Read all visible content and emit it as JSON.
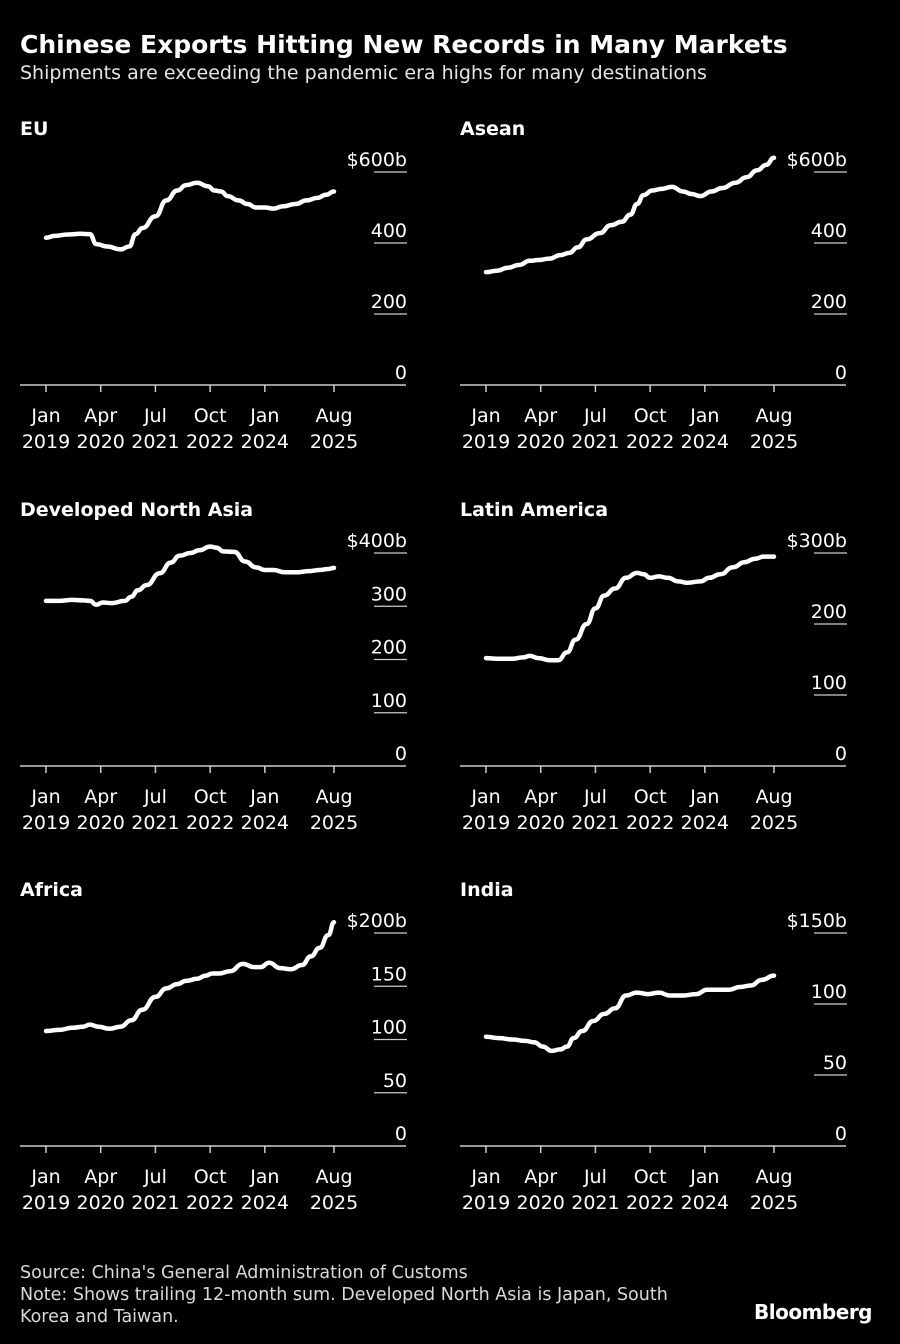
{
  "header": {
    "title": "Chinese Exports Hitting New Records in Many Markets",
    "subtitle": "Shipments are exceeding the pandemic era highs for many destinations"
  },
  "footer": {
    "source": "Source: China's General Administration of Customs",
    "note_line1": "Note: Shows trailing 12-month sum. Developed North Asia is Japan, South",
    "note_line2": "Korea and Taiwan.",
    "brand": "Bloomberg"
  },
  "colors": {
    "background": "#000000",
    "line": "#ffffff",
    "axis": "#cccccc"
  },
  "x_tick_labels": [
    {
      "month": "Jan",
      "year": "2019",
      "t": 2019.0
    },
    {
      "month": "Apr",
      "year": "2020",
      "t": 2020.25
    },
    {
      "month": "Jul",
      "year": "2021",
      "t": 2021.5
    },
    {
      "month": "Oct",
      "year": "2022",
      "t": 2022.75
    },
    {
      "month": "Jan",
      "year": "2024",
      "t": 2024.0
    },
    {
      "month": "Aug",
      "year": "2025",
      "t": 2025.58
    }
  ],
  "chart_data": [
    {
      "type": "line",
      "title": "EU",
      "xlabel": "",
      "ylabel": "",
      "ylim": [
        0,
        600
      ],
      "yticks": [
        0,
        200,
        400,
        600
      ],
      "ytick_labels": [
        "0",
        "200",
        "400",
        "$600b"
      ],
      "xlim": [
        2019.0,
        2025.58
      ],
      "grid": false,
      "legend": "none",
      "series": [
        {
          "x": [
            2019.0,
            2019.2,
            2019.5,
            2019.8,
            2020.0,
            2020.15,
            2020.4,
            2020.7,
            2020.9,
            2021.05,
            2021.2,
            2021.5,
            2021.75,
            2022.0,
            2022.2,
            2022.45,
            2022.7,
            2022.85,
            2023.0,
            2023.15,
            2023.4,
            2023.6,
            2023.8,
            2024.0,
            2024.2,
            2024.4,
            2024.7,
            2024.95,
            2025.2,
            2025.4,
            2025.58
          ],
          "y": [
            415,
            420,
            424,
            426,
            425,
            397,
            390,
            382,
            390,
            425,
            442,
            475,
            520,
            548,
            563,
            570,
            560,
            548,
            545,
            532,
            520,
            510,
            500,
            500,
            497,
            503,
            510,
            520,
            527,
            536,
            545
          ]
        }
      ]
    },
    {
      "type": "line",
      "title": "Asean",
      "xlabel": "",
      "ylabel": "",
      "ylim": [
        0,
        600
      ],
      "yticks": [
        0,
        200,
        400,
        600
      ],
      "ytick_labels": [
        "0",
        "200",
        "400",
        "$600b"
      ],
      "xlim": [
        2019.0,
        2025.58
      ],
      "grid": false,
      "legend": "none",
      "series": [
        {
          "x": [
            2019.0,
            2019.25,
            2019.5,
            2019.75,
            2020.0,
            2020.2,
            2020.45,
            2020.7,
            2020.9,
            2021.1,
            2021.3,
            2021.6,
            2021.85,
            2022.1,
            2022.3,
            2022.45,
            2022.6,
            2022.8,
            2023.0,
            2023.25,
            2023.5,
            2023.7,
            2023.9,
            2024.15,
            2024.4,
            2024.7,
            2024.95,
            2025.2,
            2025.4,
            2025.58
          ],
          "y": [
            318,
            322,
            330,
            338,
            350,
            352,
            356,
            366,
            372,
            388,
            410,
            428,
            450,
            460,
            480,
            510,
            535,
            548,
            552,
            558,
            545,
            538,
            532,
            545,
            555,
            570,
            585,
            605,
            620,
            640
          ]
        }
      ]
    },
    {
      "type": "line",
      "title": "Developed North Asia",
      "xlabel": "",
      "ylabel": "",
      "ylim": [
        0,
        400
      ],
      "yticks": [
        0,
        100,
        200,
        300,
        400
      ],
      "ytick_labels": [
        "0",
        "100",
        "200",
        "300",
        "$400b"
      ],
      "xlim": [
        2019.0,
        2025.58
      ],
      "grid": false,
      "legend": "none",
      "series": [
        {
          "x": [
            2019.0,
            2019.3,
            2019.6,
            2019.85,
            2020.0,
            2020.15,
            2020.3,
            2020.5,
            2020.8,
            2020.95,
            2021.1,
            2021.3,
            2021.6,
            2021.85,
            2022.05,
            2022.3,
            2022.5,
            2022.75,
            2022.9,
            2023.05,
            2023.3,
            2023.55,
            2023.8,
            2024.0,
            2024.2,
            2024.45,
            2024.75,
            2025.0,
            2025.25,
            2025.45,
            2025.58
          ],
          "y": [
            310,
            310,
            312,
            311,
            310,
            303,
            307,
            306,
            310,
            318,
            330,
            340,
            362,
            382,
            395,
            400,
            405,
            412,
            410,
            403,
            402,
            384,
            373,
            368,
            368,
            364,
            364,
            366,
            368,
            370,
            372
          ]
        }
      ]
    },
    {
      "type": "line",
      "title": "Latin America",
      "xlabel": "",
      "ylabel": "",
      "ylim": [
        0,
        300
      ],
      "yticks": [
        0,
        100,
        200,
        300
      ],
      "ytick_labels": [
        "0",
        "100",
        "200",
        "$300b"
      ],
      "xlim": [
        2019.0,
        2025.58
      ],
      "grid": false,
      "legend": "none",
      "series": [
        {
          "x": [
            2019.0,
            2019.3,
            2019.6,
            2019.85,
            2020.0,
            2020.2,
            2020.45,
            2020.65,
            2020.85,
            2021.05,
            2021.3,
            2021.5,
            2021.7,
            2021.95,
            2022.2,
            2022.45,
            2022.6,
            2022.75,
            2022.95,
            2023.15,
            2023.4,
            2023.6,
            2023.9,
            2024.1,
            2024.35,
            2024.65,
            2024.9,
            2025.15,
            2025.35,
            2025.58
          ],
          "y": [
            152,
            151,
            151,
            153,
            155,
            152,
            149,
            149,
            160,
            178,
            200,
            222,
            240,
            250,
            265,
            272,
            270,
            265,
            267,
            265,
            260,
            258,
            260,
            265,
            270,
            280,
            287,
            292,
            295,
            295
          ]
        }
      ]
    },
    {
      "type": "line",
      "title": "Africa",
      "xlabel": "",
      "ylabel": "",
      "ylim": [
        0,
        200
      ],
      "yticks": [
        0,
        50,
        100,
        150,
        200
      ],
      "ytick_labels": [
        "0",
        "50",
        "100",
        "150",
        "$200b"
      ],
      "xlim": [
        2019.0,
        2025.58
      ],
      "grid": false,
      "legend": "none",
      "series": [
        {
          "x": [
            2019.0,
            2019.3,
            2019.6,
            2019.85,
            2020.0,
            2020.2,
            2020.45,
            2020.7,
            2020.95,
            2021.2,
            2021.5,
            2021.75,
            2022.0,
            2022.2,
            2022.45,
            2022.65,
            2022.8,
            2022.95,
            2023.2,
            2023.5,
            2023.75,
            2023.9,
            2024.1,
            2024.35,
            2024.6,
            2024.85,
            2025.05,
            2025.25,
            2025.45,
            2025.58
          ],
          "y": [
            108,
            109,
            111,
            112,
            114,
            112,
            110,
            112,
            118,
            128,
            140,
            148,
            152,
            155,
            157,
            160,
            162,
            162,
            164,
            171,
            168,
            168,
            172,
            167,
            166,
            170,
            178,
            186,
            198,
            210
          ]
        }
      ]
    },
    {
      "type": "line",
      "title": "India",
      "xlabel": "",
      "ylabel": "",
      "ylim": [
        0,
        150
      ],
      "yticks": [
        0,
        50,
        100,
        150
      ],
      "ytick_labels": [
        "0",
        "50",
        "100",
        "$150b"
      ],
      "xlim": [
        2019.0,
        2025.58
      ],
      "grid": false,
      "legend": "none",
      "series": [
        {
          "x": [
            2019.0,
            2019.3,
            2019.6,
            2019.9,
            2020.1,
            2020.3,
            2020.5,
            2020.7,
            2020.85,
            2021.0,
            2021.2,
            2021.45,
            2021.7,
            2021.95,
            2022.2,
            2022.45,
            2022.7,
            2022.95,
            2023.2,
            2023.5,
            2023.8,
            2024.05,
            2024.3,
            2024.55,
            2024.8,
            2025.05,
            2025.3,
            2025.58
          ],
          "y": [
            77,
            76,
            75,
            74,
            73,
            70,
            67,
            68,
            70,
            76,
            81,
            88,
            93,
            97,
            106,
            108,
            107,
            108,
            106,
            106,
            107,
            110,
            110,
            110,
            112,
            113,
            117,
            120
          ]
        }
      ]
    }
  ]
}
